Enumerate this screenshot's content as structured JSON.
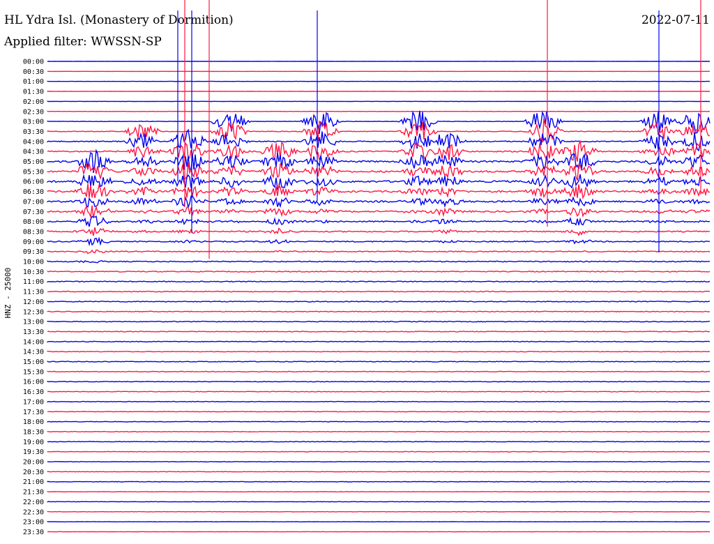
{
  "header": {
    "station": "HL Ydra Isl. (Monastery of Dormition)",
    "date": "2022-07-11",
    "filter": "Applied filter: WWSSN-SP"
  },
  "chart_data": {
    "type": "line",
    "title": "HL Ydra Isl. (Monastery of Dormition)",
    "subtitle": "Applied filter: WWSSN-SP",
    "ylabel": "HNZ - 25000",
    "xlabel": "",
    "categories": [
      "00:00",
      "00:30",
      "01:00",
      "01:30",
      "02:00",
      "02:30",
      "03:00",
      "03:30",
      "04:00",
      "04:30",
      "05:00",
      "05:30",
      "06:00",
      "06:30",
      "07:00",
      "07:30",
      "08:00",
      "08:30",
      "09:00",
      "09:30",
      "10:00",
      "10:30",
      "11:00",
      "11:30",
      "12:00",
      "12:30",
      "13:00",
      "13:30",
      "14:00",
      "14:30",
      "15:00",
      "15:30",
      "16:00",
      "16:30",
      "17:00",
      "17:30",
      "18:00",
      "18:30",
      "19:00",
      "19:30",
      "20:00",
      "20:30",
      "21:00",
      "21:30",
      "22:00",
      "22:30",
      "23:00",
      "23:30"
    ],
    "series_colors": [
      "#0000ee",
      "#ff1744"
    ],
    "activity_level": [
      0.05,
      0.05,
      0.08,
      0.08,
      0.1,
      0.12,
      0.2,
      0.3,
      0.45,
      0.55,
      0.75,
      0.8,
      0.85,
      0.8,
      0.75,
      0.7,
      0.6,
      0.55,
      0.5,
      0.45,
      0.45,
      0.42,
      0.4,
      0.38,
      0.38,
      0.35,
      0.35,
      0.32,
      0.32,
      0.3,
      0.3,
      0.28,
      0.28,
      0.26,
      0.26,
      0.25,
      0.25,
      0.24,
      0.24,
      0.22,
      0.22,
      0.2,
      0.2,
      0.18,
      0.16,
      0.14,
      0.12,
      0.1
    ],
    "grid": false,
    "legend": "none"
  }
}
